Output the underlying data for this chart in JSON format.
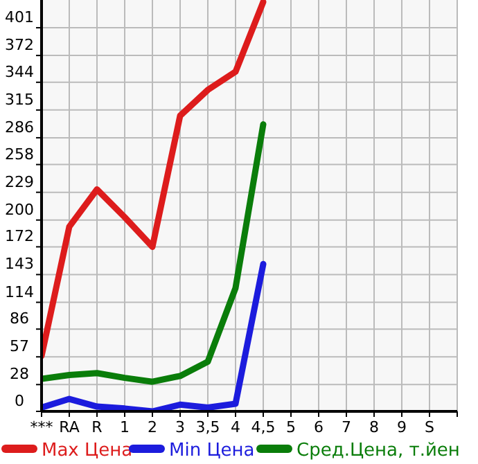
{
  "chart_data": {
    "type": "line",
    "categories": [
      "***",
      "RA",
      "R",
      "1",
      "2",
      "3",
      "3,5",
      "4",
      "4,5",
      "5",
      "6",
      "7",
      "8",
      "9",
      "S"
    ],
    "series": [
      {
        "name": "Max Цена",
        "color": "#dd1c1c",
        "values": [
          58,
          193,
          232,
          203,
          172,
          309,
          336,
          355,
          428,
          null,
          null,
          null,
          null,
          null,
          null
        ]
      },
      {
        "name": "Min Цена",
        "color": "#1c1cdd",
        "values": [
          4,
          13,
          5,
          3,
          0,
          7,
          4,
          8,
          154,
          null,
          null,
          null,
          null,
          null,
          null
        ]
      },
      {
        "name": "Сред.Цена, т.йен",
        "color": "#0a7d0a",
        "values": [
          34,
          38,
          40,
          35,
          31,
          37,
          52,
          129,
          300,
          null,
          null,
          null,
          null,
          null,
          null
        ]
      }
    ],
    "ylim": [
      0,
      430
    ],
    "yticks": [
      0,
      28,
      57,
      86,
      114,
      143,
      172,
      200,
      229,
      258,
      286,
      315,
      344,
      372,
      401
    ],
    "grid": true,
    "legend": "bottom",
    "marker": "none",
    "line_style": "solid"
  }
}
